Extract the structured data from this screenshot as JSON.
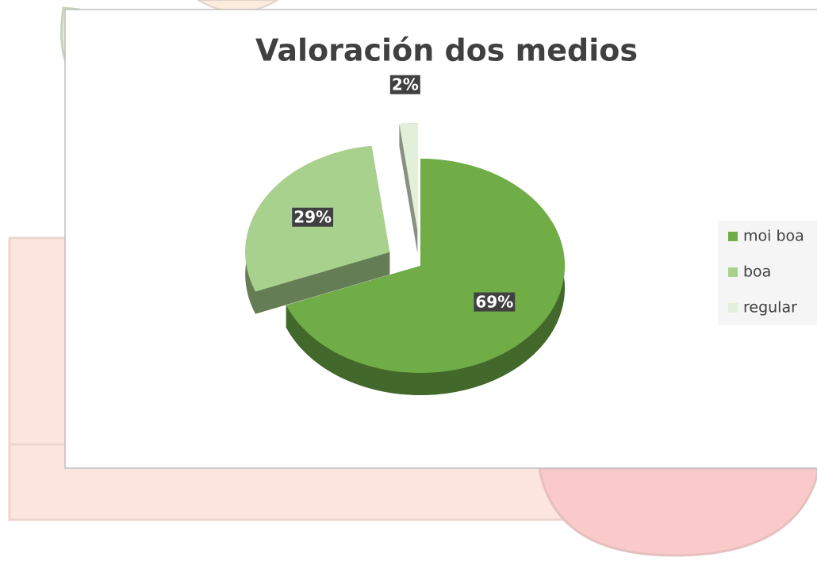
{
  "chart_data": {
    "type": "pie",
    "title": "Valoración dos medios",
    "categories": [
      "moi boa",
      "boa",
      "regular"
    ],
    "values": [
      69,
      29,
      2
    ],
    "value_labels": [
      "69%",
      "29%",
      "2%"
    ],
    "colors": [
      "#70ad47",
      "#a9d18e",
      "#e2f0d9"
    ],
    "legend": "right"
  }
}
